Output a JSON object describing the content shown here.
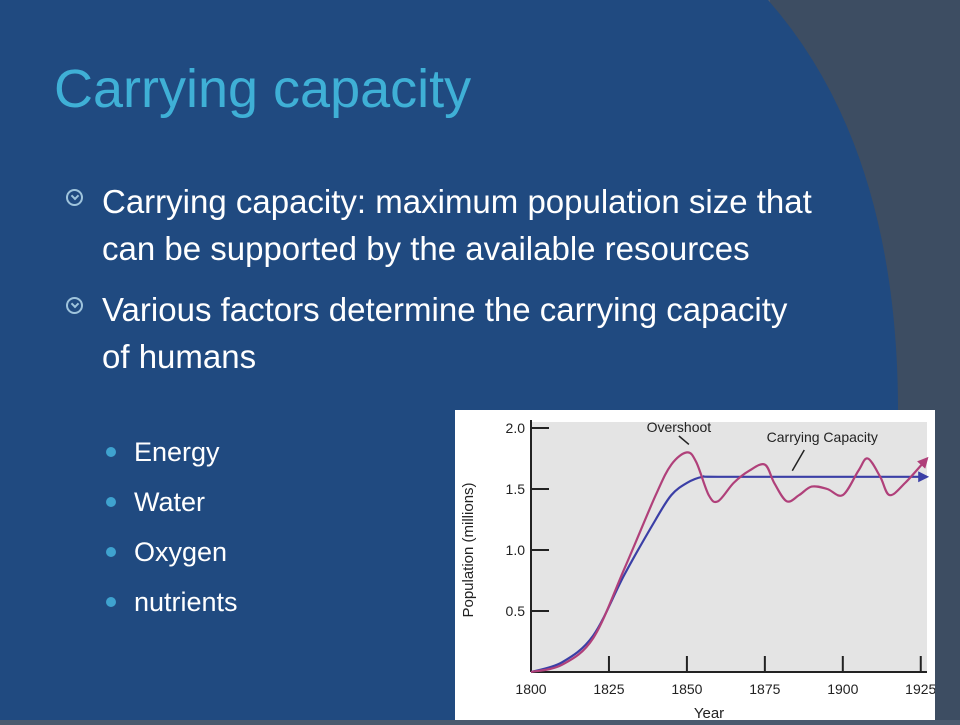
{
  "slide": {
    "title": "Carrying capacity",
    "bullets": [
      {
        "text": "Carrying capacity: maximum population size that can be supported by the available resources"
      },
      {
        "text": "Various factors determine the carrying capacity of humans"
      }
    ],
    "subbullets": [
      "Energy",
      "Water",
      "Oxygen",
      "nutrients"
    ],
    "colors": {
      "background": "#204a80",
      "title": "#3fb0d6",
      "bullet_marker": "#9fc4dc",
      "sub_dot": "#3fa3cf"
    }
  },
  "chart_data": {
    "type": "line",
    "xlabel": "Year",
    "ylabel": "Population (millions)",
    "x_ticks": [
      1800,
      1825,
      1850,
      1875,
      1900,
      1925
    ],
    "y_ticks": [
      0.5,
      1.0,
      1.5,
      2.0
    ],
    "y_tick_labels": [
      "0.5",
      "1.0",
      "1.5",
      "2.0"
    ],
    "xlim": [
      1800,
      1927
    ],
    "ylim": [
      0,
      2.0
    ],
    "annotations": [
      {
        "text": "Overshoot",
        "x": 1850,
        "y": 1.8
      },
      {
        "text": "Carrying Capacity",
        "x": 1887,
        "y": 1.6
      }
    ],
    "series": [
      {
        "color": "#3b3fa6",
        "x": [
          1800,
          1810,
          1820,
          1830,
          1840,
          1845,
          1850,
          1855,
          1860,
          1900,
          1927
        ],
        "values": [
          0.0,
          0.08,
          0.3,
          0.8,
          1.25,
          1.45,
          1.55,
          1.6,
          1.6,
          1.6,
          1.6
        ]
      },
      {
        "color": "#b0407a",
        "x": [
          1800,
          1810,
          1820,
          1830,
          1840,
          1845,
          1850,
          1853,
          1857,
          1860,
          1865,
          1870,
          1875,
          1878,
          1882,
          1886,
          1890,
          1895,
          1900,
          1905,
          1908,
          1912,
          1915,
          1920,
          1927
        ],
        "values": [
          0.0,
          0.06,
          0.28,
          0.85,
          1.45,
          1.7,
          1.8,
          1.72,
          1.45,
          1.4,
          1.55,
          1.65,
          1.7,
          1.55,
          1.4,
          1.45,
          1.52,
          1.5,
          1.45,
          1.65,
          1.75,
          1.6,
          1.45,
          1.55,
          1.75
        ]
      }
    ]
  }
}
